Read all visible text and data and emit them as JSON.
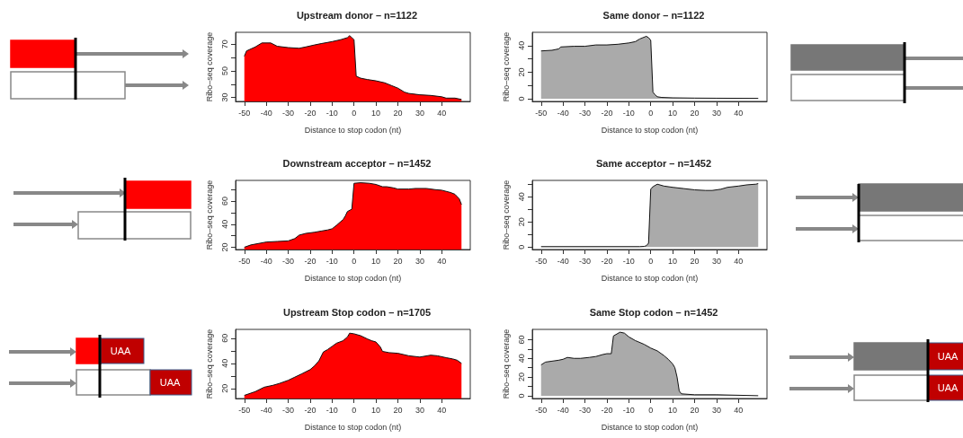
{
  "chart_data": [
    {
      "type": "area",
      "title": "Upstream donor – n=1122",
      "xlabel": "Distance to stop codon (nt)",
      "ylabel": "Ribo–seq coverage",
      "color": "#ff0000",
      "xlim": [
        -54,
        53
      ],
      "xticks": [
        -50,
        -40,
        -30,
        -20,
        -10,
        0,
        10,
        20,
        30,
        40
      ],
      "ylim": [
        27,
        79
      ],
      "yticks": [
        30,
        {
          "value": 40,
          "label": null
        },
        50,
        {
          "value": 60,
          "label": null
        },
        70
      ],
      "x": [
        -50,
        -49,
        -45,
        -42,
        -38,
        -35,
        -30,
        -25,
        -22,
        -18,
        -15,
        -10,
        -6,
        -3,
        -2,
        -1,
        0,
        1,
        3,
        6,
        10,
        14,
        17,
        20,
        23,
        25,
        30,
        35,
        40,
        42,
        46,
        49
      ],
      "values": [
        61,
        65,
        68,
        71,
        71,
        68.5,
        67.5,
        67,
        68,
        69.5,
        70.5,
        72,
        73.5,
        75,
        76.5,
        75,
        73.5,
        46,
        44.5,
        43.5,
        42.5,
        41,
        39,
        37,
        34,
        33,
        32,
        31.5,
        30.5,
        29.5,
        29.5,
        28.5
      ]
    },
    {
      "type": "area",
      "title": "Same donor – n=1122",
      "xlabel": "Distance to stop codon (nt)",
      "ylabel": "Ribo–seq coverage",
      "color": "#aaaaaa",
      "xlim": [
        -54,
        53
      ],
      "xticks": [
        -50,
        -40,
        -30,
        -20,
        -10,
        0,
        10,
        20,
        30,
        40
      ],
      "ylim": [
        -2,
        50
      ],
      "yticks": [
        0,
        {
          "value": 10,
          "label": null
        },
        20,
        {
          "value": 30,
          "label": null
        },
        40
      ],
      "x": [
        -50,
        -45,
        -42,
        -41,
        -35,
        -30,
        -25,
        -20,
        -15,
        -10,
        -7,
        -5,
        -2,
        -1,
        0,
        1,
        2,
        3,
        5,
        10,
        20,
        30,
        49
      ],
      "values": [
        36,
        36.5,
        37.5,
        39,
        39.5,
        39.5,
        40.5,
        40.5,
        41,
        42,
        43,
        45,
        47,
        46,
        44,
        5,
        3,
        1.5,
        1,
        0.7,
        0.5,
        0.4,
        0.3
      ]
    },
    {
      "type": "area",
      "title": "Downstream acceptor – n=1452",
      "xlabel": "Distance to stop codon (nt)",
      "ylabel": "Ribo–seq coverage",
      "color": "#ff0000",
      "xlim": [
        -54,
        53
      ],
      "xticks": [
        -50,
        -40,
        -30,
        -20,
        -10,
        0,
        10,
        20,
        30,
        40
      ],
      "ylim": [
        18,
        78
      ],
      "yticks": [
        20,
        {
          "value": 30,
          "label": null
        },
        40,
        {
          "value": 50,
          "label": null
        },
        60,
        {
          "value": 70,
          "label": null
        }
      ],
      "x": [
        -50,
        -47,
        -40,
        -35,
        -30,
        -27,
        -25,
        -22,
        -18,
        -15,
        -12,
        -10,
        -8,
        -5,
        -4,
        -3,
        -1,
        0,
        3,
        7,
        10,
        13,
        15,
        18,
        20,
        25,
        28,
        33,
        37,
        40,
        44,
        46,
        48,
        49
      ],
      "values": [
        20,
        22,
        24.5,
        25,
        25.5,
        27.5,
        30.5,
        32,
        33,
        34,
        35,
        36,
        39,
        44,
        47,
        51,
        53,
        75.5,
        76,
        75.5,
        74.5,
        72.5,
        72.5,
        71.5,
        70.5,
        70.5,
        71,
        71,
        70,
        69.5,
        67.5,
        66,
        62,
        57
      ]
    },
    {
      "type": "area",
      "title": "Same acceptor – n=1452",
      "xlabel": "Distance to stop codon (nt)",
      "ylabel": "Ribo–seq coverage",
      "color": "#aaaaaa",
      "xlim": [
        -54,
        53
      ],
      "xticks": [
        -50,
        -40,
        -30,
        -20,
        -10,
        0,
        10,
        20,
        30,
        40
      ],
      "ylim": [
        -2,
        53
      ],
      "yticks": [
        0,
        {
          "value": 10,
          "label": null
        },
        20,
        {
          "value": 30,
          "label": null
        },
        40,
        {
          "value": 50,
          "label": null
        }
      ],
      "x": [
        -50,
        -5,
        -3,
        -2,
        -1,
        0,
        1,
        3,
        6,
        10,
        15,
        20,
        25,
        28,
        32,
        35,
        40,
        44,
        48,
        49
      ],
      "values": [
        0.3,
        0.3,
        0.5,
        1,
        3,
        46,
        48,
        50,
        48.5,
        47.5,
        46.5,
        45.5,
        45,
        45,
        46,
        47.5,
        48.5,
        49.5,
        50,
        50.5
      ]
    },
    {
      "type": "area",
      "title": "Upstream Stop codon – n=1705",
      "xlabel": "Distance to stop codon (nt)",
      "ylabel": "Ribo–seq coverage",
      "color": "#ff0000",
      "xlim": [
        -54,
        53
      ],
      "xticks": [
        -50,
        -40,
        -30,
        -20,
        -10,
        0,
        10,
        20,
        30,
        40
      ],
      "ylim": [
        12,
        67
      ],
      "yticks": [
        20,
        {
          "value": 30,
          "label": null
        },
        40,
        {
          "value": 50,
          "label": null
        },
        60
      ],
      "annotations": [
        "UAA",
        "UAA"
      ],
      "x": [
        -50,
        -45,
        -41,
        -37,
        -34,
        -30,
        -27,
        -24,
        -20,
        -18,
        -16,
        -14,
        -12,
        -10,
        -8,
        -5,
        -3,
        -2,
        0,
        3,
        6,
        8,
        10,
        12,
        13,
        16,
        20,
        25,
        30,
        35,
        38,
        42,
        45,
        47,
        49
      ],
      "values": [
        14.5,
        17.5,
        21,
        22.5,
        24,
        26.5,
        29,
        31.5,
        35,
        38,
        42,
        49,
        51,
        53.5,
        56,
        58,
        61,
        64,
        63.5,
        62,
        59.5,
        58,
        57,
        53,
        49.5,
        48.5,
        48,
        46,
        45,
        46.5,
        46,
        44.5,
        43.5,
        42.5,
        40
      ]
    },
    {
      "type": "area",
      "title": "Same Stop codon – n=1452",
      "xlabel": "Distance to stop codon (nt)",
      "ylabel": "Ribo–seq coverage",
      "color": "#aaaaaa",
      "xlim": [
        -54,
        53
      ],
      "xticks": [
        -50,
        -40,
        -30,
        -20,
        -10,
        0,
        10,
        20,
        30,
        40
      ],
      "ylim": [
        -3,
        71
      ],
      "yticks": [
        0,
        {
          "value": 10,
          "label": null
        },
        20,
        {
          "value": 30,
          "label": null
        },
        40,
        {
          "value": 50,
          "label": null
        },
        60
      ],
      "annotations": [
        "UAA",
        "UAA"
      ],
      "x": [
        -50,
        -48,
        -45,
        -42,
        -40,
        -38,
        -35,
        -32,
        -28,
        -25,
        -22,
        -20,
        -18,
        -17,
        -14,
        -12,
        -10,
        -7,
        -3,
        0,
        3,
        6,
        8,
        10,
        11,
        12,
        13,
        14,
        20,
        30,
        49
      ],
      "values": [
        33,
        36,
        37,
        38,
        39,
        41,
        40,
        40,
        41,
        42,
        44,
        45,
        45,
        64,
        68,
        67,
        63,
        59,
        55,
        51,
        48,
        43,
        39,
        34,
        30,
        20,
        5,
        2,
        1,
        1,
        0
      ]
    }
  ]
}
